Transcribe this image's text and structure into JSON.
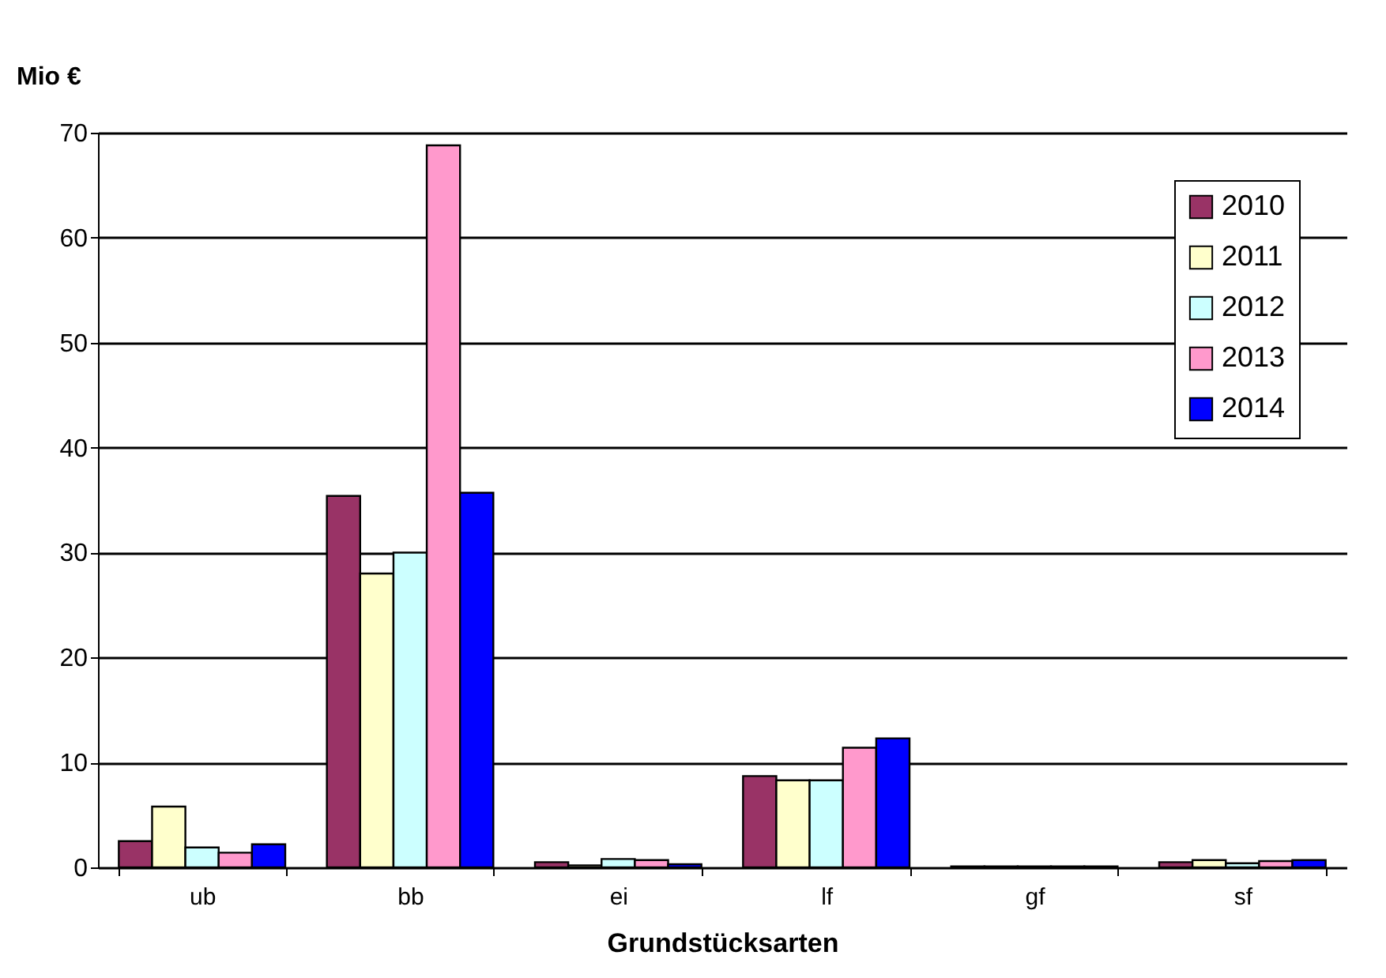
{
  "chart_data": {
    "type": "bar",
    "xlabel": "Grundstücksarten",
    "ylabel": "Mio €",
    "categories": [
      "ub",
      "bb",
      "ei",
      "lf",
      "gf",
      "sf"
    ],
    "series": [
      {
        "name": "2010",
        "color": "#993366",
        "values": [
          2.5,
          35.4,
          0.5,
          8.7,
          0.1,
          0.5
        ]
      },
      {
        "name": "2011",
        "color": "#ffffcc",
        "values": [
          5.8,
          28,
          0.2,
          8.3,
          0.1,
          0.7
        ]
      },
      {
        "name": "2012",
        "color": "#ccffff",
        "values": [
          1.9,
          30,
          0.8,
          8.3,
          0.1,
          0.4
        ]
      },
      {
        "name": "2013",
        "color": "#ff99cc",
        "values": [
          1.4,
          68.8,
          0.7,
          11.4,
          0.1,
          0.6
        ]
      },
      {
        "name": "2014",
        "color": "#0000ff",
        "values": [
          2.2,
          35.7,
          0.3,
          12.3,
          0.1,
          0.7
        ]
      }
    ],
    "ylim": [
      0,
      70
    ],
    "yticks": [
      0,
      10,
      20,
      30,
      40,
      50,
      60,
      70
    ],
    "grid": "y",
    "legend": "top right"
  }
}
